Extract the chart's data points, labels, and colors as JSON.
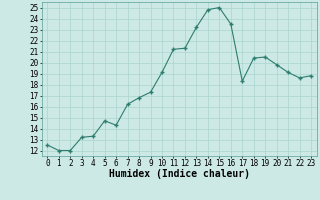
{
  "x": [
    0,
    1,
    2,
    3,
    4,
    5,
    6,
    7,
    8,
    9,
    10,
    11,
    12,
    13,
    14,
    15,
    16,
    17,
    18,
    19,
    20,
    21,
    22,
    23
  ],
  "y": [
    12.5,
    12.0,
    12.0,
    13.2,
    13.3,
    14.7,
    14.3,
    16.2,
    16.8,
    17.3,
    19.1,
    21.2,
    21.3,
    23.2,
    24.8,
    25.0,
    23.5,
    18.3,
    20.4,
    20.5,
    19.8,
    19.1,
    18.6,
    18.8
  ],
  "line_color": "#2d7d6e",
  "marker_color": "#2d7d6e",
  "bg_color": "#cce9e5",
  "grid_color": "#aad4cf",
  "xlabel": "Humidex (Indice chaleur)",
  "ylim": [
    11.5,
    25.5
  ],
  "xlim": [
    -0.5,
    23.5
  ],
  "yticks": [
    12,
    13,
    14,
    15,
    16,
    17,
    18,
    19,
    20,
    21,
    22,
    23,
    24,
    25
  ],
  "xticks": [
    0,
    1,
    2,
    3,
    4,
    5,
    6,
    7,
    8,
    9,
    10,
    11,
    12,
    13,
    14,
    15,
    16,
    17,
    18,
    19,
    20,
    21,
    22,
    23
  ],
  "tick_fontsize": 5.5,
  "label_fontsize": 7
}
